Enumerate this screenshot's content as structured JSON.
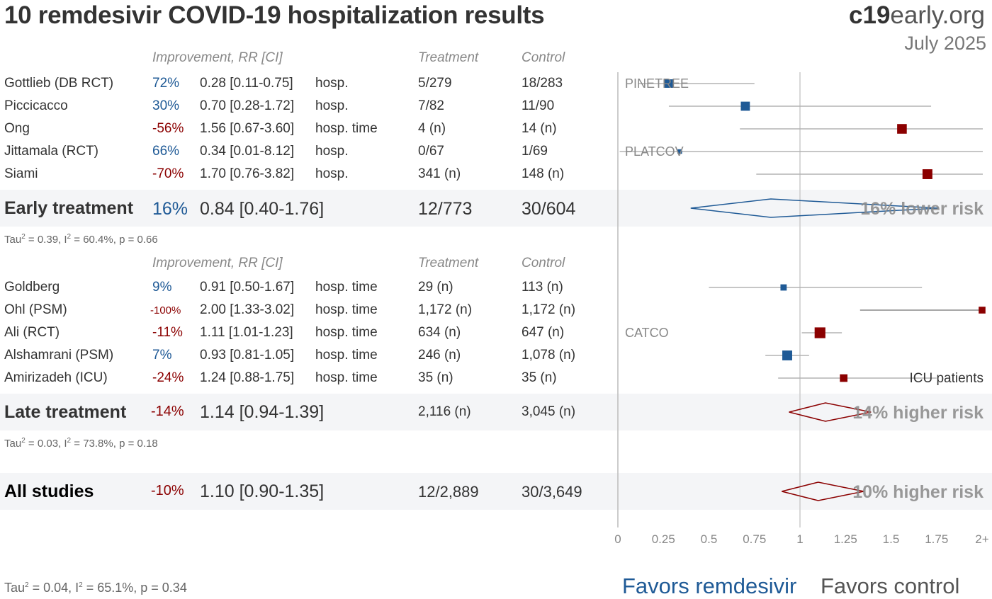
{
  "header": {
    "title": "10 remdesivir COVID-19 hospitalization results",
    "brand_bold": "c19",
    "brand_rest": "early.org",
    "date": "July 2025"
  },
  "columns": {
    "improvement": "Improvement, RR [CI]",
    "treatment": "Treatment",
    "control": "Control"
  },
  "early": {
    "studies": [
      {
        "name": "Gottlieb (DB RCT)",
        "improvement": "72%",
        "rr_text": "0.28 [0.11-0.75]",
        "outcome": "hosp.",
        "treatment": "5/279",
        "control": "18/283",
        "annotation": "PINETREE"
      },
      {
        "name": "Piccicacco",
        "improvement": "30%",
        "rr_text": "0.70 [0.28-1.72]",
        "outcome": "hosp.",
        "treatment": "7/82",
        "control": "11/90",
        "annotation": ""
      },
      {
        "name": "Ong",
        "improvement": "-56%",
        "rr_text": "1.56 [0.67-3.60]",
        "outcome": "hosp. time",
        "treatment": "4 (n)",
        "control": "14 (n)",
        "annotation": ""
      },
      {
        "name": "Jittamala (RCT)",
        "improvement": "66%",
        "rr_text": "0.34 [0.01-8.12]",
        "outcome": "hosp.",
        "treatment": "0/67",
        "control": "1/69",
        "annotation": "PLATCOV"
      },
      {
        "name": "Siami",
        "improvement": "-70%",
        "rr_text": "1.70 [0.76-3.82]",
        "outcome": "hosp.",
        "treatment": "341 (n)",
        "control": "148 (n)",
        "annotation": ""
      }
    ],
    "summary": {
      "label": "Early treatment",
      "improvement": "16%",
      "rr_text": "0.84 [0.40-1.76]",
      "treatment": "12/773",
      "control": "30/604",
      "risk_text": "16% lower risk"
    },
    "stats": {
      "tau": "Tau",
      "rest": " = 0.39, I",
      "rest2": " = 60.4%, p = 0.66"
    }
  },
  "late": {
    "studies": [
      {
        "name": "Goldberg",
        "improvement": "9%",
        "rr_text": "0.91 [0.50-1.67]",
        "outcome": "hosp. time",
        "treatment": "29 (n)",
        "control": "113 (n)",
        "annotation": ""
      },
      {
        "name": "Ohl (PSM)",
        "improvement": "-100%",
        "rr_text": "2.00 [1.33-3.02]",
        "outcome": "hosp. time",
        "treatment": "1,172 (n)",
        "control": "1,172 (n)",
        "annotation": ""
      },
      {
        "name": "Ali (RCT)",
        "improvement": "-11%",
        "rr_text": "1.11 [1.01-1.23]",
        "outcome": "hosp. time",
        "treatment": "634 (n)",
        "control": "647 (n)",
        "annotation": "CATCO"
      },
      {
        "name": "Alshamrani (PSM)",
        "improvement": "7%",
        "rr_text": "0.93 [0.81-1.05]",
        "outcome": "hosp. time",
        "treatment": "246 (n)",
        "control": "1,078 (n)",
        "annotation": ""
      },
      {
        "name": "Amirizadeh (ICU)",
        "improvement": "-24%",
        "rr_text": "1.24 [0.88-1.75]",
        "outcome": "hosp. time",
        "treatment": "35 (n)",
        "control": "35 (n)",
        "annotation": "ICU patients"
      }
    ],
    "summary": {
      "label": "Late treatment",
      "improvement": "-14%",
      "rr_text": "1.14 [0.94-1.39]",
      "treatment": "2,116 (n)",
      "control": "3,045 (n)",
      "risk_text": "14% higher risk"
    },
    "stats": {
      "tau": "Tau",
      "rest": " = 0.03, I",
      "rest2": " = 73.8%, p = 0.18"
    }
  },
  "all": {
    "summary": {
      "label": "All studies",
      "improvement": "-10%",
      "rr_text": "1.10 [0.90-1.35]",
      "treatment": "12/2,889",
      "control": "30/3,649",
      "risk_text": "10% higher risk"
    },
    "stats": {
      "tau": "Tau",
      "rest": " = 0.04, I",
      "rest2": " = 65.1%, p = 0.34"
    }
  },
  "footer": {
    "favors_left": "Favors remdesivir",
    "favors_right": "Favors control"
  },
  "colors": {
    "benefit": "#1f5a96",
    "harm": "#8b0000",
    "ci_line": "#b3b3b3",
    "band": "#f4f5f7"
  },
  "chart_data": {
    "type": "forest",
    "x_ticks": [
      "0",
      "0.25",
      "0.5",
      "0.75",
      "1",
      "1.25",
      "1.5",
      "1.75",
      "2+"
    ],
    "xlim": [
      0,
      2
    ],
    "reference_line": 1,
    "early_points": [
      {
        "rr": 0.28,
        "lo": 0.11,
        "hi": 0.75,
        "weight": 0.5
      },
      {
        "rr": 0.7,
        "lo": 0.28,
        "hi": 1.72,
        "weight": 0.55
      },
      {
        "rr": 1.56,
        "lo": 0.67,
        "hi": 3.6,
        "weight": 0.6
      },
      {
        "rr": 0.34,
        "lo": 0.01,
        "hi": 8.12,
        "weight": 0.15
      },
      {
        "rr": 1.7,
        "lo": 0.76,
        "hi": 3.82,
        "weight": 0.62
      }
    ],
    "early_summary": {
      "rr": 0.84,
      "lo": 0.4,
      "hi": 1.76
    },
    "late_points": [
      {
        "rr": 0.91,
        "lo": 0.5,
        "hi": 1.67,
        "weight": 0.3
      },
      {
        "rr": 2.0,
        "lo": 1.33,
        "hi": 3.02,
        "weight": 0.35
      },
      {
        "rr": 1.11,
        "lo": 1.01,
        "hi": 1.23,
        "weight": 0.7
      },
      {
        "rr": 0.93,
        "lo": 0.81,
        "hi": 1.05,
        "weight": 0.62
      },
      {
        "rr": 1.24,
        "lo": 0.88,
        "hi": 1.75,
        "weight": 0.42
      }
    ],
    "late_summary": {
      "rr": 1.14,
      "lo": 0.94,
      "hi": 1.39
    },
    "all_summary": {
      "rr": 1.1,
      "lo": 0.9,
      "hi": 1.35
    }
  }
}
